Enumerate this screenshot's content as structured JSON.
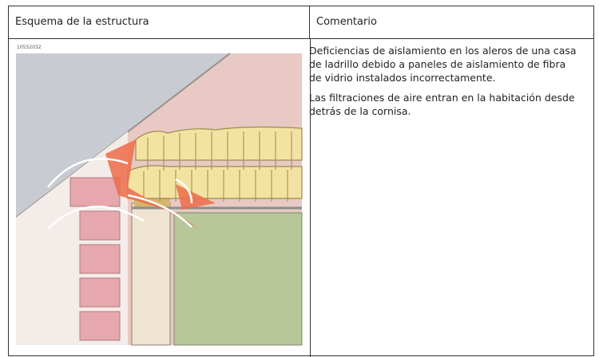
{
  "header": {
    "col1": "Esquema de la estructura",
    "col2": "Comentario"
  },
  "figure": {
    "code": "10552032"
  },
  "comment": {
    "paragraphs": [
      "Deficiencias de aislamiento en los aleros de una casa de ladrillo debido a paneles de aislamiento de fibra de vidrio instalados incorrectamente.",
      "Las filtraciones de aire entran en la habitación desde detrás de la cornisa."
    ]
  }
}
